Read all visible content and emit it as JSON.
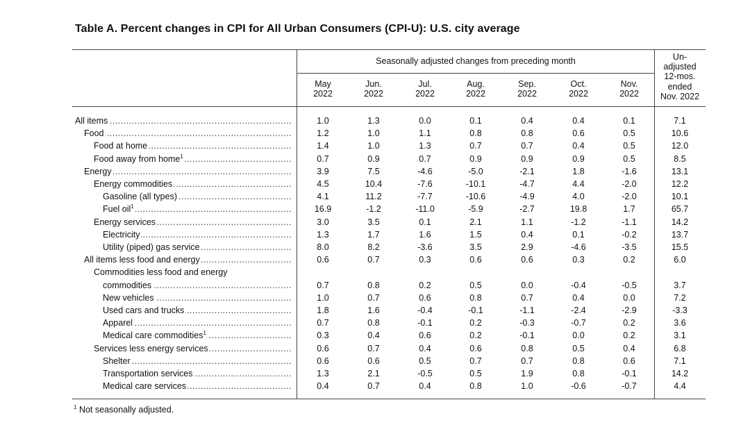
{
  "title": "Table A. Percent changes in CPI for All Urban Consumers (CPI-U): U.S. city average",
  "span_header": "Seasonally adjusted changes from preceding month",
  "columns": [
    {
      "month": "May",
      "year": "2022"
    },
    {
      "month": "Jun.",
      "year": "2022"
    },
    {
      "month": "Jul.",
      "year": "2022"
    },
    {
      "month": "Aug.",
      "year": "2022"
    },
    {
      "month": "Sep.",
      "year": "2022"
    },
    {
      "month": "Oct.",
      "year": "2022"
    },
    {
      "month": "Nov.",
      "year": "2022"
    }
  ],
  "unadjusted_header": [
    "Un-",
    "adjusted",
    "12-mos.",
    "ended",
    "Nov. 2022"
  ],
  "rows": [
    {
      "label": "All items",
      "level": 0,
      "values": [
        "1.0",
        "1.3",
        "0.0",
        "0.1",
        "0.4",
        "0.4",
        "0.1",
        "7.1"
      ]
    },
    {
      "label": "Food",
      "level": 1,
      "values": [
        "1.2",
        "1.0",
        "1.1",
        "0.8",
        "0.8",
        "0.6",
        "0.5",
        "10.6"
      ]
    },
    {
      "label": "Food at home",
      "level": 2,
      "values": [
        "1.4",
        "1.0",
        "1.3",
        "0.7",
        "0.7",
        "0.4",
        "0.5",
        "12.0"
      ]
    },
    {
      "label": "Food away from home",
      "level": 2,
      "footnote": "1",
      "values": [
        "0.7",
        "0.9",
        "0.7",
        "0.9",
        "0.9",
        "0.9",
        "0.5",
        "8.5"
      ]
    },
    {
      "label": "Energy",
      "level": 1,
      "values": [
        "3.9",
        "7.5",
        "-4.6",
        "-5.0",
        "-2.1",
        "1.8",
        "-1.6",
        "13.1"
      ]
    },
    {
      "label": "Energy commodities",
      "level": 2,
      "values": [
        "4.5",
        "10.4",
        "-7.6",
        "-10.1",
        "-4.7",
        "4.4",
        "-2.0",
        "12.2"
      ]
    },
    {
      "label": "Gasoline (all types)",
      "level": 3,
      "values": [
        "4.1",
        "11.2",
        "-7.7",
        "-10.6",
        "-4.9",
        "4.0",
        "-2.0",
        "10.1"
      ]
    },
    {
      "label": "Fuel oil",
      "level": 3,
      "footnote": "1",
      "values": [
        "16.9",
        "-1.2",
        "-11.0",
        "-5.9",
        "-2.7",
        "19.8",
        "1.7",
        "65.7"
      ]
    },
    {
      "label": "Energy services",
      "level": 2,
      "values": [
        "3.0",
        "3.5",
        "0.1",
        "2.1",
        "1.1",
        "-1.2",
        "-1.1",
        "14.2"
      ]
    },
    {
      "label": "Electricity",
      "level": 3,
      "values": [
        "1.3",
        "1.7",
        "1.6",
        "1.5",
        "0.4",
        "0.1",
        "-0.2",
        "13.7"
      ]
    },
    {
      "label": "Utility (piped) gas service",
      "level": 3,
      "values": [
        "8.0",
        "8.2",
        "-3.6",
        "3.5",
        "2.9",
        "-4.6",
        "-3.5",
        "15.5"
      ]
    },
    {
      "label": "All items less food and energy",
      "level": 1,
      "values": [
        "0.6",
        "0.7",
        "0.3",
        "0.6",
        "0.6",
        "0.3",
        "0.2",
        "6.0"
      ]
    },
    {
      "label": "Commodities less food and energy",
      "level": 2,
      "heading_only": true
    },
    {
      "label": "commodities",
      "level": 3,
      "values": [
        "0.7",
        "0.8",
        "0.2",
        "0.5",
        "0.0",
        "-0.4",
        "-0.5",
        "3.7"
      ]
    },
    {
      "label": "New vehicles",
      "level": 3,
      "values": [
        "1.0",
        "0.7",
        "0.6",
        "0.8",
        "0.7",
        "0.4",
        "0.0",
        "7.2"
      ]
    },
    {
      "label": "Used cars and trucks",
      "level": 3,
      "values": [
        "1.8",
        "1.6",
        "-0.4",
        "-0.1",
        "-1.1",
        "-2.4",
        "-2.9",
        "-3.3"
      ]
    },
    {
      "label": "Apparel",
      "level": 3,
      "values": [
        "0.7",
        "0.8",
        "-0.1",
        "0.2",
        "-0.3",
        "-0.7",
        "0.2",
        "3.6"
      ]
    },
    {
      "label": "Medical care commodities",
      "level": 3,
      "footnote": "1",
      "values": [
        "0.3",
        "0.4",
        "0.6",
        "0.2",
        "-0.1",
        "0.0",
        "0.2",
        "3.1"
      ]
    },
    {
      "label": "Services less energy services",
      "level": 2,
      "values": [
        "0.6",
        "0.7",
        "0.4",
        "0.6",
        "0.8",
        "0.5",
        "0.4",
        "6.8"
      ]
    },
    {
      "label": "Shelter",
      "level": 3,
      "values": [
        "0.6",
        "0.6",
        "0.5",
        "0.7",
        "0.7",
        "0.8",
        "0.6",
        "7.1"
      ]
    },
    {
      "label": "Transportation services",
      "level": 3,
      "values": [
        "1.3",
        "2.1",
        "-0.5",
        "0.5",
        "1.9",
        "0.8",
        "-0.1",
        "14.2"
      ]
    },
    {
      "label": "Medical care services",
      "level": 3,
      "values": [
        "0.4",
        "0.7",
        "0.4",
        "0.8",
        "1.0",
        "-0.6",
        "-0.7",
        "4.4"
      ]
    }
  ],
  "footnote": {
    "mark": "1",
    "text": "Not seasonally adjusted."
  }
}
